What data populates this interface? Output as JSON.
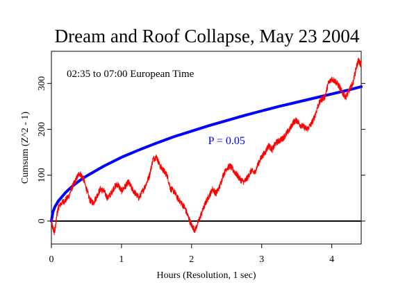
{
  "chart_data": {
    "type": "line",
    "title": "Dream and Roof Collapse, May 23 2004",
    "annotation": "02:35 to 07:00 European Time",
    "xlabel": "Hours (Resolution, 1 sec)",
    "ylabel": "Cumsum (Z^2 - 1)",
    "xlim": [
      0,
      4.42
    ],
    "ylim": [
      -50,
      370
    ],
    "x_ticks": [
      0,
      1,
      2,
      3,
      4
    ],
    "y_ticks": [
      0,
      100,
      200,
      300
    ],
    "grid": false,
    "zero_line": true,
    "colors": {
      "cumsum": "#ff0000",
      "envelope": "#0000ff",
      "axis": "#000000"
    },
    "envelope": {
      "label": "P = 0.05",
      "label_position": [
        2.5,
        180
      ],
      "x": [
        0,
        0.02,
        0.05,
        0.1,
        0.2,
        0.3,
        0.4,
        0.5,
        0.75,
        1.0,
        1.25,
        1.5,
        1.75,
        2.0,
        2.25,
        2.5,
        2.75,
        3.0,
        3.25,
        3.5,
        3.75,
        4.0,
        4.25,
        4.42
      ],
      "y": [
        0,
        19,
        31,
        44,
        62,
        76,
        88,
        98,
        120,
        139,
        155,
        170,
        184,
        196,
        208,
        219,
        230,
        240,
        250,
        259,
        268,
        277,
        286,
        293
      ]
    },
    "series": [
      {
        "values_x": [
          0,
          0.02,
          0.04,
          0.06,
          0.08,
          0.1,
          0.15,
          0.2,
          0.25,
          0.3,
          0.35,
          0.4,
          0.45,
          0.5,
          0.55,
          0.6,
          0.65,
          0.7,
          0.75,
          0.8,
          0.85,
          0.9,
          0.95,
          1.0,
          1.05,
          1.1,
          1.15,
          1.2,
          1.25,
          1.3,
          1.35,
          1.4,
          1.45,
          1.5,
          1.55,
          1.6,
          1.65,
          1.7,
          1.75,
          1.8,
          1.85,
          1.9,
          1.95,
          2.0,
          2.05,
          2.1,
          2.15,
          2.2,
          2.25,
          2.3,
          2.35,
          2.4,
          2.45,
          2.5,
          2.55,
          2.6,
          2.65,
          2.7,
          2.75,
          2.8,
          2.85,
          2.9,
          2.95,
          3.0,
          3.05,
          3.1,
          3.15,
          3.2,
          3.25,
          3.3,
          3.35,
          3.4,
          3.45,
          3.5,
          3.55,
          3.6,
          3.65,
          3.7,
          3.75,
          3.8,
          3.85,
          3.9,
          3.95,
          4.0,
          4.05,
          4.1,
          4.15,
          4.2,
          4.25,
          4.3,
          4.35,
          4.38,
          4.42
        ],
        "values_y": [
          0,
          -15,
          -25,
          -10,
          15,
          30,
          40,
          45,
          55,
          75,
          90,
          105,
          95,
          70,
          45,
          40,
          55,
          70,
          65,
          50,
          60,
          75,
          80,
          65,
          75,
          85,
          70,
          60,
          50,
          65,
          80,
          100,
          135,
          140,
          120,
          110,
          100,
          70,
          65,
          50,
          40,
          30,
          10,
          -10,
          -20,
          0,
          20,
          40,
          55,
          70,
          60,
          75,
          100,
          115,
          120,
          110,
          100,
          90,
          85,
          95,
          110,
          105,
          125,
          140,
          150,
          165,
          155,
          170,
          175,
          180,
          190,
          200,
          215,
          220,
          210,
          205,
          200,
          210,
          225,
          250,
          265,
          270,
          300,
          310,
          305,
          295,
          280,
          270,
          285,
          300,
          335,
          350,
          340
        ]
      }
    ]
  }
}
